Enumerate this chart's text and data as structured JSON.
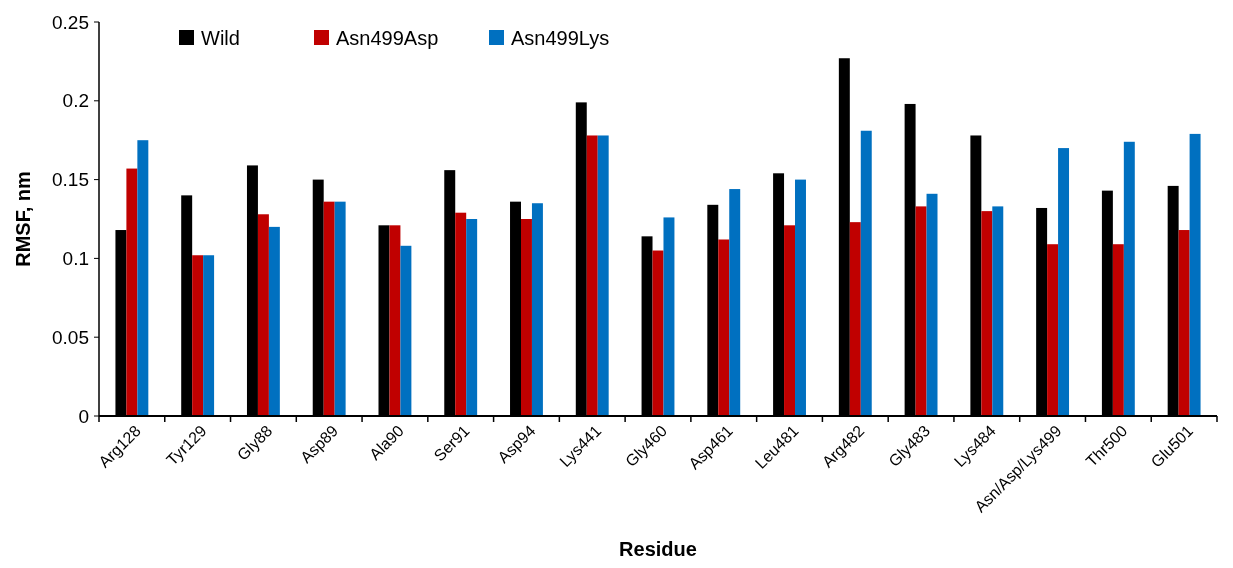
{
  "chart_data": {
    "type": "bar",
    "xlabel": "Residue",
    "ylabel": "RMSF, nm",
    "categories": [
      "Arg128",
      "Tyr129",
      "Gly88",
      "Asp89",
      "Ala90",
      "Ser91",
      "Asp94",
      "Lys441",
      "Gly460",
      "Asp461",
      "Leu481",
      "Arg482",
      "Gly483",
      "Lys484",
      "Asn/Asp/Lys499",
      "Thr500",
      "Glu501"
    ],
    "series": [
      {
        "name": "Wild",
        "color": "#000000",
        "values": [
          0.118,
          0.14,
          0.159,
          0.15,
          0.121,
          0.156,
          0.136,
          0.199,
          0.114,
          0.134,
          0.154,
          0.227,
          0.198,
          0.178,
          0.132,
          0.143,
          0.146
        ]
      },
      {
        "name": "Asn499Asp",
        "color": "#c00000",
        "values": [
          0.157,
          0.102,
          0.128,
          0.136,
          0.121,
          0.129,
          0.125,
          0.178,
          0.105,
          0.112,
          0.121,
          0.123,
          0.133,
          0.13,
          0.109,
          0.109,
          0.118
        ]
      },
      {
        "name": "Asn499Lys",
        "color": "#0070c0",
        "values": [
          0.175,
          0.102,
          0.12,
          0.136,
          0.108,
          0.125,
          0.135,
          0.178,
          0.126,
          0.144,
          0.15,
          0.181,
          0.141,
          0.133,
          0.17,
          0.174,
          0.179
        ]
      }
    ],
    "ylim": [
      0,
      0.25
    ],
    "yticks": [
      0,
      0.05,
      0.1,
      0.15,
      0.2,
      0.25
    ],
    "grid": false,
    "legend": "top left"
  }
}
